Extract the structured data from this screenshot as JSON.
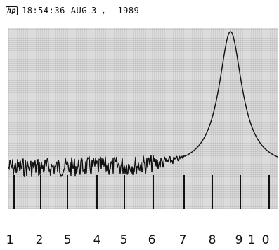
{
  "header": {
    "logo_icon": "hp-logo-icon",
    "time": "18:54:36",
    "month": "AUG",
    "day": "3",
    "separator": ",",
    "year": "1989"
  },
  "display": {
    "trace_color": "#111111",
    "marker_color": "#111111",
    "background_color": "#dcdcdc"
  },
  "axis_labels": [
    "1",
    "2",
    "5",
    "4",
    "5",
    "6",
    "7",
    "8",
    "9",
    "1",
    "0"
  ]
}
